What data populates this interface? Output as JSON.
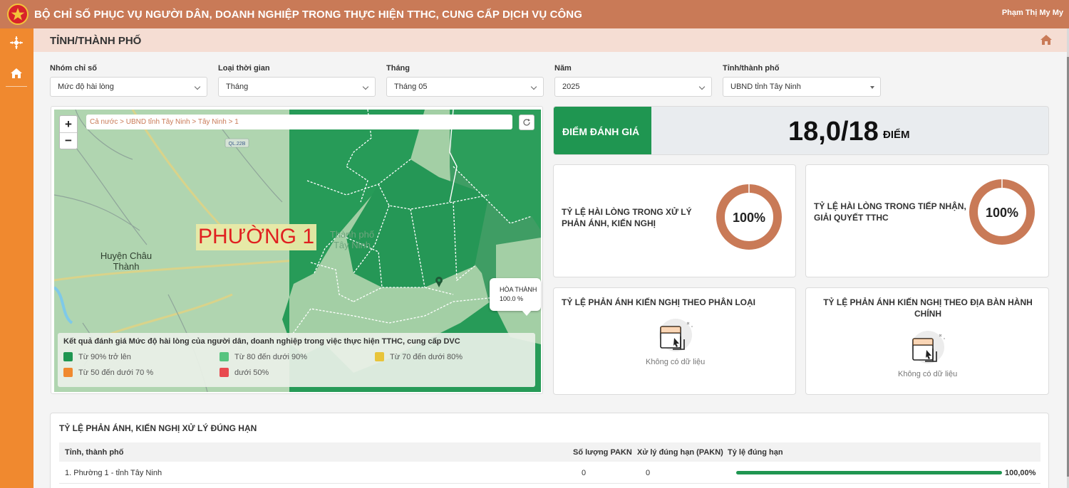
{
  "header": {
    "title": "BỘ CHỈ SỐ PHỤC VỤ NGƯỜI DÂN, DOANH NGHIỆP TRONG THỰC HIỆN TTHC, CUNG CẤP DỊCH VỤ CÔNG",
    "user_name": "Phạm Thị My My",
    "bg_color": "#c97a57"
  },
  "sidebar": {
    "icons": [
      "compass-icon",
      "home-icon"
    ],
    "bg_color": "#f0892f"
  },
  "page": {
    "title": "TỈNH/THÀNH PHỐ"
  },
  "filters": [
    {
      "label": "Nhóm chỉ số",
      "value": "Mức độ hài lòng"
    },
    {
      "label": "Loại thời gian",
      "value": "Tháng"
    },
    {
      "label": "Tháng",
      "value": "Tháng 05"
    },
    {
      "label": "Năm",
      "value": "2025"
    },
    {
      "label": "Tỉnh/thành phố",
      "value": "UBND tỉnh Tây Ninh"
    }
  ],
  "map": {
    "breadcrumb": "Cả nước > UBND tỉnh Tây Ninh > Tây Ninh > 1",
    "zoom_in": "+",
    "zoom_out": "−",
    "selected_region": "PHƯỜNG 1",
    "places": [
      "Huyện Châu Thành",
      "Thành phố Tây Ninh"
    ],
    "road_label": "QL.22B",
    "tooltip": {
      "name": "HÒA THÀNH",
      "value": "100.0 %"
    },
    "legend": {
      "title": "Kết quả đánh giá Mức độ hài lòng của người dân, doanh nghiệp trong việc thực hiện TTHC, cung cấp DVC",
      "items": [
        {
          "label": "Từ 90% trở lên",
          "color": "#1f9651"
        },
        {
          "label": "Từ 80 đến dưới 90%",
          "color": "#56c47f"
        },
        {
          "label": "Từ 70 đến dưới 80%",
          "color": "#e8c43a"
        },
        {
          "label": "Từ 50 đến dưới 70 %",
          "color": "#f0892f"
        },
        {
          "label": "dưới 50%",
          "color": "#e84a4f"
        }
      ]
    }
  },
  "score": {
    "label": "ĐIỂM ĐÁNH GIÁ",
    "value": "18,0/18",
    "unit": "ĐIỂM"
  },
  "cards": {
    "satisfaction_feedback": {
      "title": "TỶ LỆ HÀI LÒNG TRONG XỬ LÝ PHẢN ÁNH, KIẾN NGHỊ",
      "percent_label": "100%",
      "percent": 100
    },
    "satisfaction_procedures": {
      "title": "TỶ LỆ HÀI LÒNG TRONG TIẾP NHẬN, GIẢI QUYẾT TTHC",
      "percent_label": "100%",
      "percent": 100
    },
    "feedback_by_category": {
      "title": "TỶ LỆ PHẢN ÁNH KIẾN NGHỊ THEO PHÂN LOẠI",
      "empty_text": "Không có dữ liệu"
    },
    "feedback_by_area": {
      "title": "TỶ LỆ PHẢN ÁNH KIẾN NGHỊ THEO ĐỊA BÀN HÀNH CHÍNH",
      "empty_text": "Không có dữ liệu"
    }
  },
  "table": {
    "title": "TỶ LỆ PHẢN ÁNH, KIẾN NGHỊ XỬ LÝ ĐÚNG HẠN",
    "columns": [
      "Tỉnh, thành phố",
      "Số lượng PAKN",
      "Xử lý đúng hạn (PAKN)",
      "Tỷ lệ đúng hạn"
    ],
    "rows": [
      {
        "name": "1. Phường 1 - tỉnh Tây Ninh",
        "count": "0",
        "on_time": "0",
        "rate_label": "100,00%",
        "rate": 1.0
      }
    ]
  }
}
